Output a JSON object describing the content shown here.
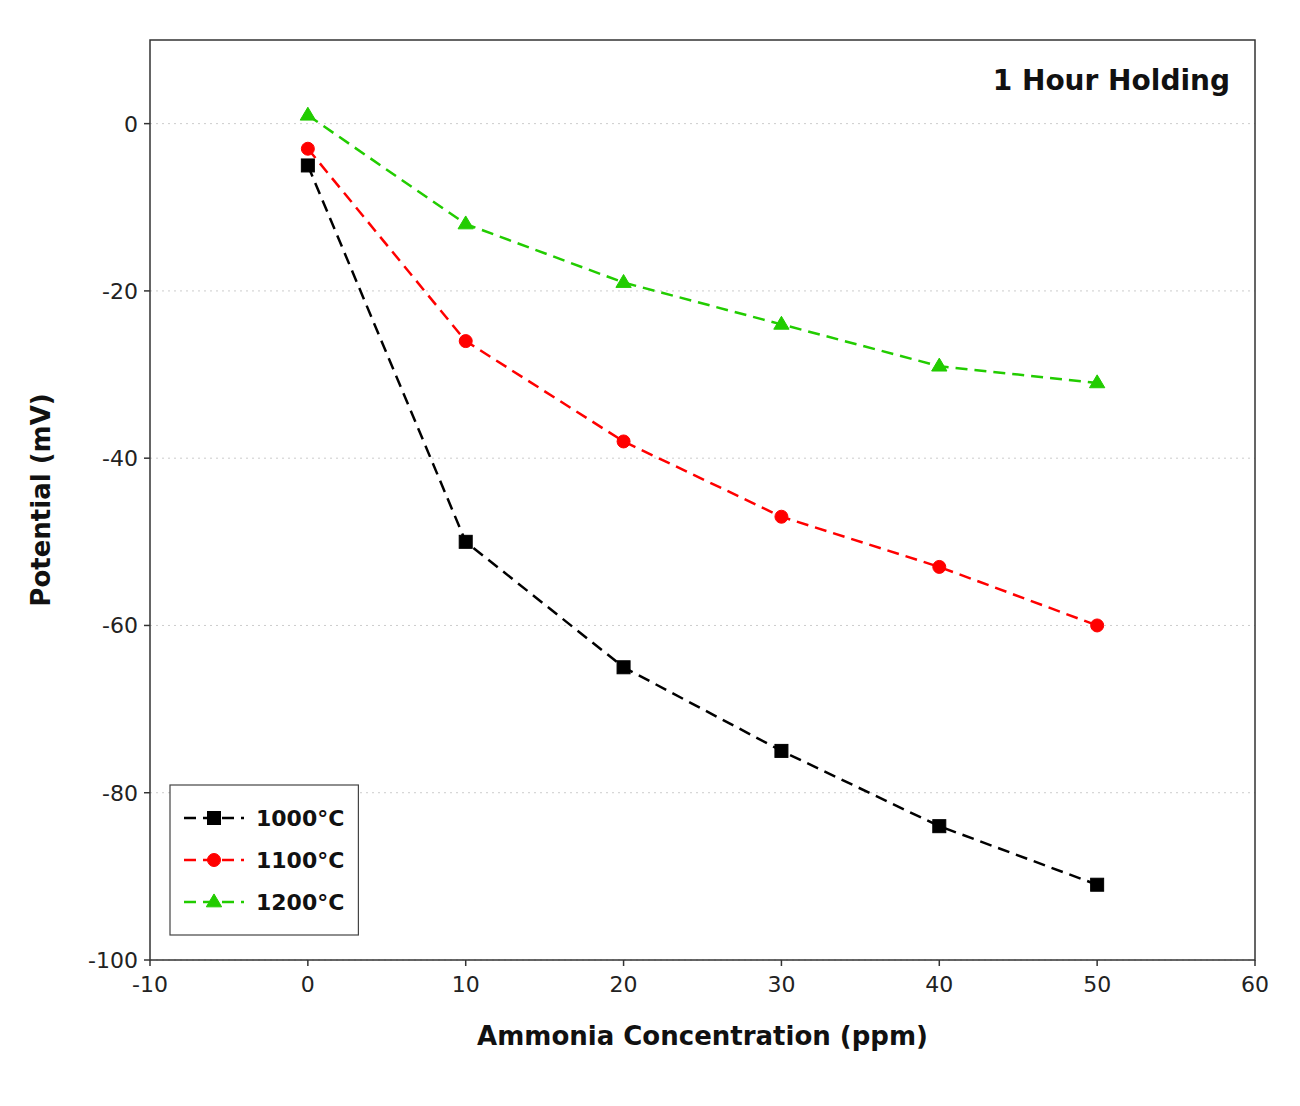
{
  "chart_data": {
    "type": "line",
    "x_label": "Ammonia Concentration (ppm)",
    "y_label": "Potential (mV)",
    "x": [
      0,
      10,
      20,
      30,
      40,
      50
    ],
    "series": [
      {
        "name": "1000°C",
        "color": "#000000",
        "marker": "square",
        "line_style": "dashed",
        "values": [
          -5,
          -50,
          -65,
          -75,
          -84,
          -91
        ]
      },
      {
        "name": "1100°C",
        "color": "#ff0000",
        "marker": "circle",
        "line_style": "dashed",
        "values": [
          -3,
          -26,
          -38,
          -47,
          -53,
          -60
        ]
      },
      {
        "name": "1200°C",
        "color": "#22cc00",
        "marker": "triangle",
        "line_style": "dashed",
        "values": [
          1,
          -12,
          -19,
          -24,
          -29,
          -31
        ]
      }
    ],
    "xlim": [
      -10,
      60
    ],
    "ylim": [
      -100,
      10
    ],
    "xticks": [
      -10,
      0,
      10,
      20,
      30,
      40,
      50,
      60
    ],
    "yticks": [
      -100,
      -80,
      -60,
      -40,
      -20,
      0
    ],
    "grid": true,
    "legend": "lower left",
    "annotation": "1 Hour Holding"
  }
}
